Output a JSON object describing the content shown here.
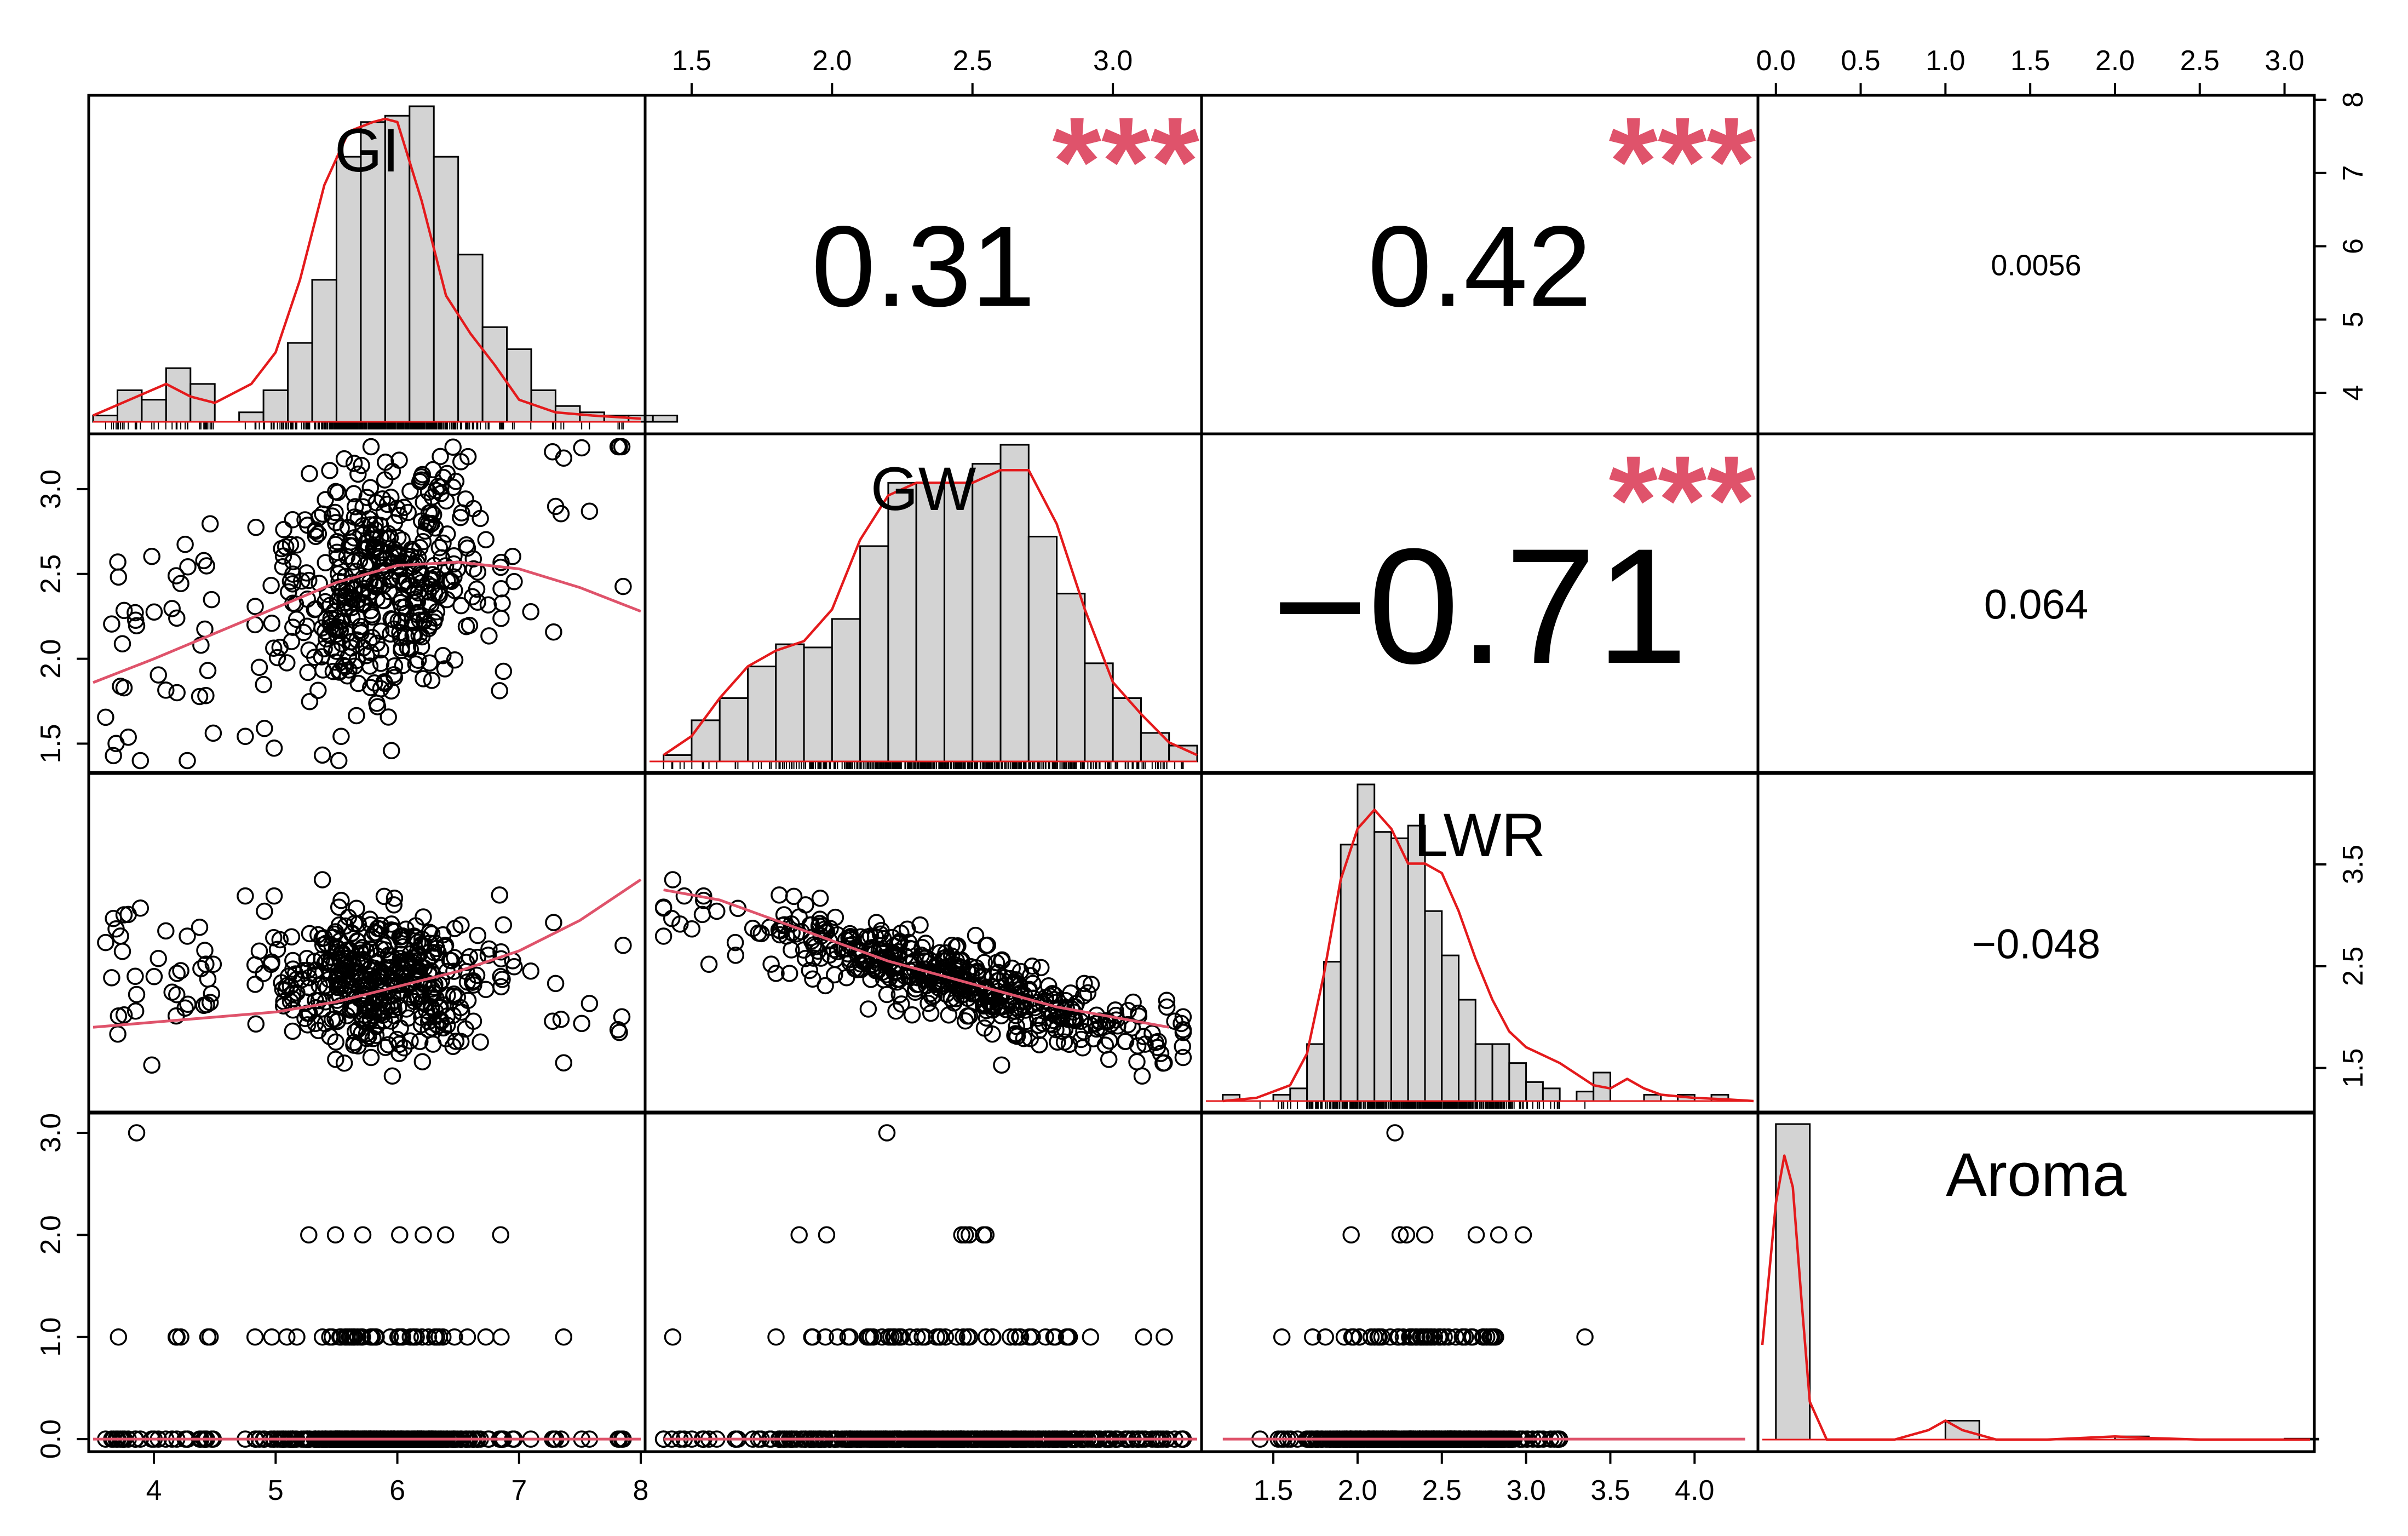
{
  "chart_data": {
    "type": "scatter-matrix",
    "title": "",
    "variables": [
      "GI",
      "GW",
      "LWR",
      "Aroma"
    ],
    "axes": {
      "GI": {
        "range": [
          3.5,
          8.0
        ],
        "ticks": [
          4,
          5,
          6,
          7,
          8
        ],
        "tick_labels": [
          "4",
          "5",
          "6",
          "7",
          "8"
        ]
      },
      "GW": {
        "range": [
          1.35,
          3.3
        ],
        "ticks": [
          1.5,
          2.0,
          2.5,
          3.0
        ],
        "tick_labels": [
          "1.5",
          "2.0",
          "2.5",
          "3.0"
        ]
      },
      "LWR": {
        "range": [
          1.1,
          4.35
        ],
        "ticks": [
          1.5,
          2.0,
          2.5,
          3.0,
          3.5,
          4.0
        ],
        "tick_labels": [
          "1.5",
          "2.0",
          "2.5",
          "3.0",
          "3.5",
          "4.0"
        ]
      },
      "LWR_right": {
        "ticks": [
          1.5,
          2.5,
          3.5
        ],
        "tick_labels": [
          "1.5",
          "2.5",
          "3.5"
        ]
      },
      "Aroma": {
        "range": [
          -0.08,
          3.15
        ],
        "ticks": [
          0.0,
          0.5,
          1.0,
          1.5,
          2.0,
          2.5,
          3.0
        ],
        "tick_labels": [
          "0.0",
          "0.5",
          "1.0",
          "1.5",
          "2.0",
          "2.5",
          "3.0"
        ]
      },
      "Aroma_left": {
        "ticks": [
          0.0,
          1.0,
          2.0,
          3.0
        ],
        "tick_labels": [
          "0.0",
          "1.0",
          "2.0",
          "3.0"
        ]
      },
      "GI_right": {
        "ticks": [
          4,
          5,
          6,
          7,
          8
        ],
        "tick_labels": [
          "4",
          "5",
          "6",
          "7",
          "8"
        ]
      }
    },
    "correlations": [
      {
        "row": 0,
        "col": 1,
        "label": "0.31",
        "stars": "***",
        "size": "large"
      },
      {
        "row": 0,
        "col": 2,
        "label": "0.42",
        "stars": "***",
        "size": "large"
      },
      {
        "row": 0,
        "col": 3,
        "label": "0.0056",
        "stars": "",
        "size": "small"
      },
      {
        "row": 1,
        "col": 2,
        "label": "−0.71",
        "stars": "***",
        "size": "xlarge"
      },
      {
        "row": 1,
        "col": 3,
        "label": "0.064",
        "stars": "",
        "size": "medium"
      },
      {
        "row": 2,
        "col": 3,
        "label": "−0.048",
        "stars": "",
        "size": "medium"
      }
    ],
    "histograms": {
      "GI": {
        "bin_start": 3.5,
        "bin_width": 0.2,
        "densities": [
          0.02,
          0.1,
          0.07,
          0.17,
          0.12,
          0.0,
          0.03,
          0.1,
          0.25,
          0.45,
          0.84,
          0.95,
          0.97,
          1.0,
          0.84,
          0.53,
          0.3,
          0.23,
          0.1,
          0.05,
          0.03,
          0.02,
          0.02,
          0.02
        ]
      },
      "GW": {
        "bin_start": 1.4,
        "bin_width": 0.1,
        "densities": [
          0.02,
          0.13,
          0.2,
          0.3,
          0.37,
          0.36,
          0.45,
          0.68,
          0.88,
          0.88,
          0.88,
          0.94,
          1.0,
          0.71,
          0.53,
          0.31,
          0.2,
          0.09,
          0.05
        ]
      },
      "LWR": {
        "bin_start": 1.2,
        "bin_width": 0.1,
        "densities": [
          0.02,
          0.0,
          0.0,
          0.02,
          0.04,
          0.18,
          0.44,
          0.81,
          1.0,
          0.85,
          0.83,
          0.87,
          0.6,
          0.46,
          0.32,
          0.18,
          0.18,
          0.12,
          0.06,
          0.04,
          0.0,
          0.03,
          0.09,
          0.0,
          0.0,
          0.02,
          0.0,
          0.02,
          0.0,
          0.02
        ]
      },
      "Aroma": {
        "bin_start": 0.0,
        "bin_width": 0.2,
        "densities": [
          1.0,
          0.0,
          0.0,
          0.0,
          0.0,
          0.06,
          0.0,
          0.0,
          0.0,
          0.0,
          0.01,
          0.0,
          0.0,
          0.0,
          0.0,
          0.003
        ]
      }
    },
    "density_curves": {
      "GI": {
        "x": [
          3.5,
          3.8,
          4.1,
          4.3,
          4.5,
          4.8,
          5.0,
          5.2,
          5.4,
          5.6,
          5.8,
          5.9,
          6.0,
          6.2,
          6.4,
          6.6,
          6.8,
          7.0,
          7.3,
          7.6,
          8.0
        ],
        "y": [
          0.02,
          0.07,
          0.12,
          0.08,
          0.06,
          0.12,
          0.22,
          0.45,
          0.75,
          0.92,
          0.95,
          0.96,
          0.95,
          0.7,
          0.4,
          0.28,
          0.18,
          0.07,
          0.03,
          0.02,
          0.01
        ]
      },
      "GW": {
        "x": [
          1.4,
          1.5,
          1.6,
          1.7,
          1.8,
          1.9,
          2.0,
          2.1,
          2.2,
          2.3,
          2.4,
          2.5,
          2.6,
          2.7,
          2.8,
          2.9,
          3.0,
          3.1,
          3.2,
          3.3
        ],
        "y": [
          0.02,
          0.08,
          0.2,
          0.3,
          0.35,
          0.38,
          0.48,
          0.7,
          0.84,
          0.88,
          0.88,
          0.88,
          0.92,
          0.92,
          0.75,
          0.48,
          0.25,
          0.15,
          0.06,
          0.02
        ]
      },
      "LWR": {
        "x": [
          1.2,
          1.4,
          1.6,
          1.7,
          1.8,
          1.9,
          2.0,
          2.1,
          2.2,
          2.3,
          2.4,
          2.5,
          2.6,
          2.7,
          2.8,
          2.9,
          3.0,
          3.2,
          3.4,
          3.5,
          3.6,
          3.7,
          3.8,
          4.0,
          4.2,
          4.35
        ],
        "y": [
          0.0,
          0.01,
          0.05,
          0.15,
          0.4,
          0.7,
          0.86,
          0.92,
          0.86,
          0.75,
          0.75,
          0.72,
          0.6,
          0.45,
          0.32,
          0.22,
          0.17,
          0.12,
          0.05,
          0.04,
          0.07,
          0.04,
          0.02,
          0.01,
          0.005,
          0.0
        ]
      },
      "Aroma": {
        "x": [
          -0.08,
          0.0,
          0.05,
          0.1,
          0.15,
          0.2,
          0.3,
          0.5,
          0.7,
          0.9,
          1.0,
          1.1,
          1.3,
          1.6,
          1.8,
          2.0,
          2.2,
          2.5,
          3.15
        ],
        "y": [
          0.3,
          0.75,
          0.9,
          0.8,
          0.45,
          0.12,
          0.0,
          0.0,
          0.0,
          0.03,
          0.06,
          0.03,
          0.0,
          0.0,
          0.005,
          0.01,
          0.005,
          0.0,
          0.0
        ]
      }
    },
    "loess": {
      "GI_GW": {
        "x": [
          3.5,
          4.0,
          4.5,
          5.0,
          5.5,
          6.0,
          6.5,
          7.0,
          7.5,
          8.0
        ],
        "y": [
          1.86,
          2.0,
          2.15,
          2.3,
          2.45,
          2.55,
          2.57,
          2.53,
          2.42,
          2.28
        ]
      },
      "GI_LWR": {
        "x": [
          3.5,
          4.0,
          4.5,
          5.0,
          5.5,
          6.0,
          6.5,
          7.0,
          7.5,
          8.0
        ],
        "y": [
          1.9,
          1.95,
          2.0,
          2.05,
          2.15,
          2.3,
          2.45,
          2.65,
          2.95,
          3.35
        ]
      },
      "GW_LWR": {
        "x": [
          1.4,
          1.6,
          1.8,
          2.0,
          2.2,
          2.4,
          2.6,
          2.8,
          3.0,
          3.2
        ],
        "y": [
          3.25,
          3.15,
          2.95,
          2.75,
          2.55,
          2.4,
          2.25,
          2.1,
          2.0,
          1.9
        ]
      },
      "GI_Aroma": {
        "x": [
          3.5,
          8.0
        ],
        "y": [
          0.0,
          0.0
        ]
      },
      "GW_Aroma": {
        "x": [
          1.4,
          3.3
        ],
        "y": [
          0.0,
          0.0
        ]
      },
      "LWR_Aroma": {
        "x": [
          1.2,
          4.3
        ],
        "y": [
          0.0,
          0.0
        ]
      }
    },
    "var_labels": {
      "GI": "GI",
      "GW": "GW",
      "LWR": "LWR",
      "Aroma": "Aroma"
    },
    "colors": {
      "density": "#E41A1C",
      "loess": "#DF536B",
      "stars": "#DF536B",
      "hist_fill": "#D3D3D3",
      "frame": "#000000"
    }
  }
}
